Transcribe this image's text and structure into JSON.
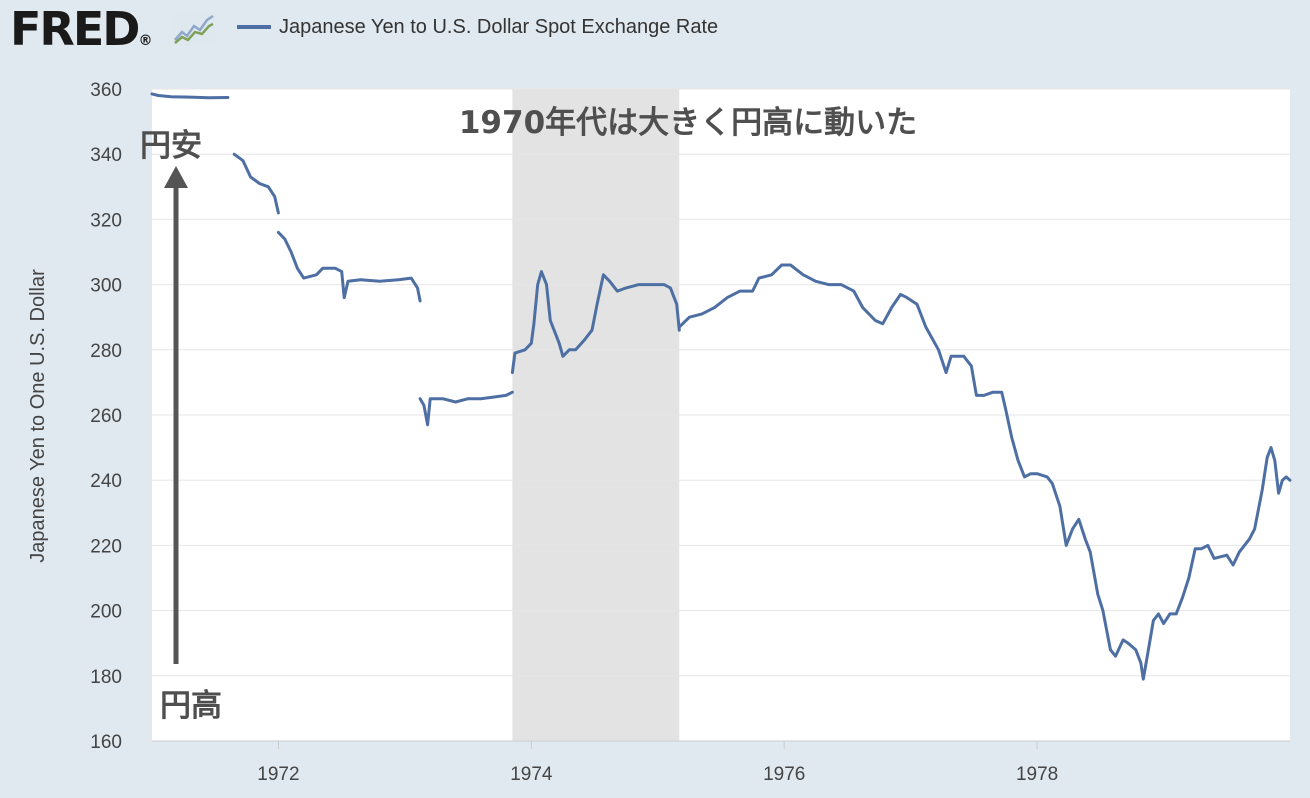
{
  "header": {
    "logo_text": "FRED",
    "logo_mark": "®",
    "logo_icon": "line-graph-icon"
  },
  "colors": {
    "background": "#e1e9f0",
    "plot_bg": "#ffffff",
    "series": "#4e6fa3",
    "recession": "#e3e3e3",
    "annotation": "#555555"
  },
  "annotations": {
    "title_jp": "1970年代は大きく円高に動いた",
    "weak_yen": "円安",
    "strong_yen": "円高"
  },
  "chart_data": {
    "type": "line",
    "title": "",
    "legend": [
      "Japanese Yen to U.S. Dollar Spot Exchange Rate"
    ],
    "legend_placement": "top-left",
    "xlabel": "",
    "ylabel": "Japanese Yen to One U.S. Dollar",
    "xlim": [
      1971.0,
      1980.0
    ],
    "ylim": [
      160,
      360
    ],
    "grid": true,
    "x_ticks": [
      {
        "value": 1972,
        "label": "1972"
      },
      {
        "value": 1974,
        "label": "1974"
      },
      {
        "value": 1976,
        "label": "1976"
      },
      {
        "value": 1978,
        "label": "1978"
      }
    ],
    "y_ticks": [
      {
        "value": 160,
        "label": "160"
      },
      {
        "value": 180,
        "label": "180"
      },
      {
        "value": 200,
        "label": "200"
      },
      {
        "value": 220,
        "label": "220"
      },
      {
        "value": 240,
        "label": "240"
      },
      {
        "value": 260,
        "label": "260"
      },
      {
        "value": 280,
        "label": "280"
      },
      {
        "value": 300,
        "label": "300"
      },
      {
        "value": 320,
        "label": "320"
      },
      {
        "value": 340,
        "label": "340"
      },
      {
        "value": 360,
        "label": "360"
      }
    ],
    "shaded_periods": [
      [
        1973.85,
        1975.17
      ]
    ],
    "series": [
      {
        "name": "Japanese Yen to U.S. Dollar Spot Exchange Rate",
        "segments": [
          [
            [
              1971.0,
              358.5
            ],
            [
              1971.05,
              358.0
            ],
            [
              1971.15,
              357.6
            ],
            [
              1971.3,
              357.5
            ],
            [
              1971.45,
              357.3
            ],
            [
              1971.6,
              357.4
            ]
          ],
          [
            [
              1971.65,
              340
            ],
            [
              1971.72,
              338
            ],
            [
              1971.78,
              333
            ],
            [
              1971.85,
              331
            ],
            [
              1971.92,
              330
            ],
            [
              1971.97,
              327
            ],
            [
              1972.0,
              322
            ]
          ],
          [
            [
              1972.0,
              316
            ],
            [
              1972.05,
              314
            ],
            [
              1972.1,
              310
            ],
            [
              1972.15,
              305
            ],
            [
              1972.2,
              302
            ],
            [
              1972.3,
              303
            ],
            [
              1972.35,
              305
            ],
            [
              1972.45,
              305
            ],
            [
              1972.5,
              304
            ],
            [
              1972.52,
              296
            ],
            [
              1972.55,
              301
            ],
            [
              1972.65,
              301.5
            ],
            [
              1972.8,
              301
            ],
            [
              1972.95,
              301.5
            ],
            [
              1973.05,
              302
            ],
            [
              1973.1,
              299
            ],
            [
              1973.12,
              295
            ]
          ],
          [
            [
              1973.12,
              265
            ],
            [
              1973.15,
              263
            ],
            [
              1973.18,
              257
            ],
            [
              1973.2,
              265
            ],
            [
              1973.3,
              265
            ],
            [
              1973.4,
              264
            ],
            [
              1973.5,
              265
            ],
            [
              1973.6,
              265
            ],
            [
              1973.7,
              265.5
            ],
            [
              1973.8,
              266
            ],
            [
              1973.85,
              267
            ]
          ],
          [
            [
              1973.85,
              273
            ],
            [
              1973.87,
              279
            ],
            [
              1973.95,
              280
            ],
            [
              1974.0,
              282
            ],
            [
              1974.02,
              288
            ],
            [
              1974.05,
              300
            ],
            [
              1974.08,
              304
            ],
            [
              1974.12,
              300
            ],
            [
              1974.15,
              289
            ],
            [
              1974.18,
              286
            ],
            [
              1974.22,
              282
            ],
            [
              1974.25,
              278
            ],
            [
              1974.3,
              280
            ],
            [
              1974.35,
              280
            ],
            [
              1974.42,
              283
            ],
            [
              1974.48,
              286
            ],
            [
              1974.52,
              294
            ],
            [
              1974.57,
              303
            ],
            [
              1974.62,
              301
            ],
            [
              1974.68,
              298
            ],
            [
              1974.75,
              299
            ],
            [
              1974.85,
              300
            ],
            [
              1974.95,
              300
            ],
            [
              1975.05,
              300
            ],
            [
              1975.1,
              299
            ],
            [
              1975.15,
              294
            ],
            [
              1975.17,
              286
            ]
          ],
          [
            [
              1975.17,
              287
            ],
            [
              1975.25,
              290
            ],
            [
              1975.35,
              291
            ],
            [
              1975.45,
              293
            ],
            [
              1975.55,
              296
            ],
            [
              1975.65,
              298
            ],
            [
              1975.75,
              298
            ],
            [
              1975.8,
              302
            ],
            [
              1975.9,
              303
            ],
            [
              1975.98,
              306
            ],
            [
              1976.05,
              306
            ],
            [
              1976.15,
              303
            ],
            [
              1976.25,
              301
            ],
            [
              1976.35,
              300
            ],
            [
              1976.45,
              300
            ],
            [
              1976.55,
              298
            ],
            [
              1976.62,
              293
            ],
            [
              1976.72,
              289
            ],
            [
              1976.78,
              288
            ],
            [
              1976.85,
              293
            ],
            [
              1976.92,
              297
            ],
            [
              1976.97,
              296
            ],
            [
              1977.05,
              294
            ],
            [
              1977.12,
              287
            ],
            [
              1977.22,
              280
            ],
            [
              1977.28,
              273
            ],
            [
              1977.32,
              278
            ],
            [
              1977.42,
              278
            ],
            [
              1977.48,
              275
            ],
            [
              1977.52,
              266
            ],
            [
              1977.58,
              266
            ],
            [
              1977.65,
              267
            ],
            [
              1977.72,
              267
            ],
            [
              1977.75,
              262
            ],
            [
              1977.8,
              253
            ],
            [
              1977.85,
              246
            ],
            [
              1977.9,
              241
            ],
            [
              1977.95,
              242
            ],
            [
              1978.0,
              242
            ],
            [
              1978.08,
              241
            ],
            [
              1978.12,
              239
            ],
            [
              1978.18,
              232
            ],
            [
              1978.23,
              220
            ],
            [
              1978.28,
              225
            ],
            [
              1978.33,
              228
            ],
            [
              1978.38,
              222
            ],
            [
              1978.42,
              218
            ],
            [
              1978.48,
              205
            ],
            [
              1978.52,
              200
            ],
            [
              1978.58,
              188
            ],
            [
              1978.62,
              186
            ],
            [
              1978.68,
              191
            ],
            [
              1978.72,
              190
            ],
            [
              1978.78,
              188
            ],
            [
              1978.82,
              184
            ],
            [
              1978.84,
              179
            ],
            [
              1978.88,
              188
            ],
            [
              1978.92,
              197
            ],
            [
              1978.96,
              199
            ],
            [
              1979.0,
              196
            ],
            [
              1979.05,
              199
            ],
            [
              1979.1,
              199
            ],
            [
              1979.15,
              204
            ],
            [
              1979.2,
              210
            ],
            [
              1979.25,
              219
            ],
            [
              1979.3,
              219
            ],
            [
              1979.35,
              220
            ],
            [
              1979.4,
              216
            ],
            [
              1979.5,
              217
            ],
            [
              1979.55,
              214
            ],
            [
              1979.6,
              218
            ],
            [
              1979.68,
              222
            ],
            [
              1979.72,
              225
            ],
            [
              1979.78,
              237
            ],
            [
              1979.82,
              247
            ],
            [
              1979.85,
              250
            ],
            [
              1979.88,
              246
            ],
            [
              1979.91,
              236
            ],
            [
              1979.94,
              240
            ],
            [
              1979.97,
              241
            ],
            [
              1980.0,
              240
            ]
          ]
        ]
      }
    ]
  }
}
